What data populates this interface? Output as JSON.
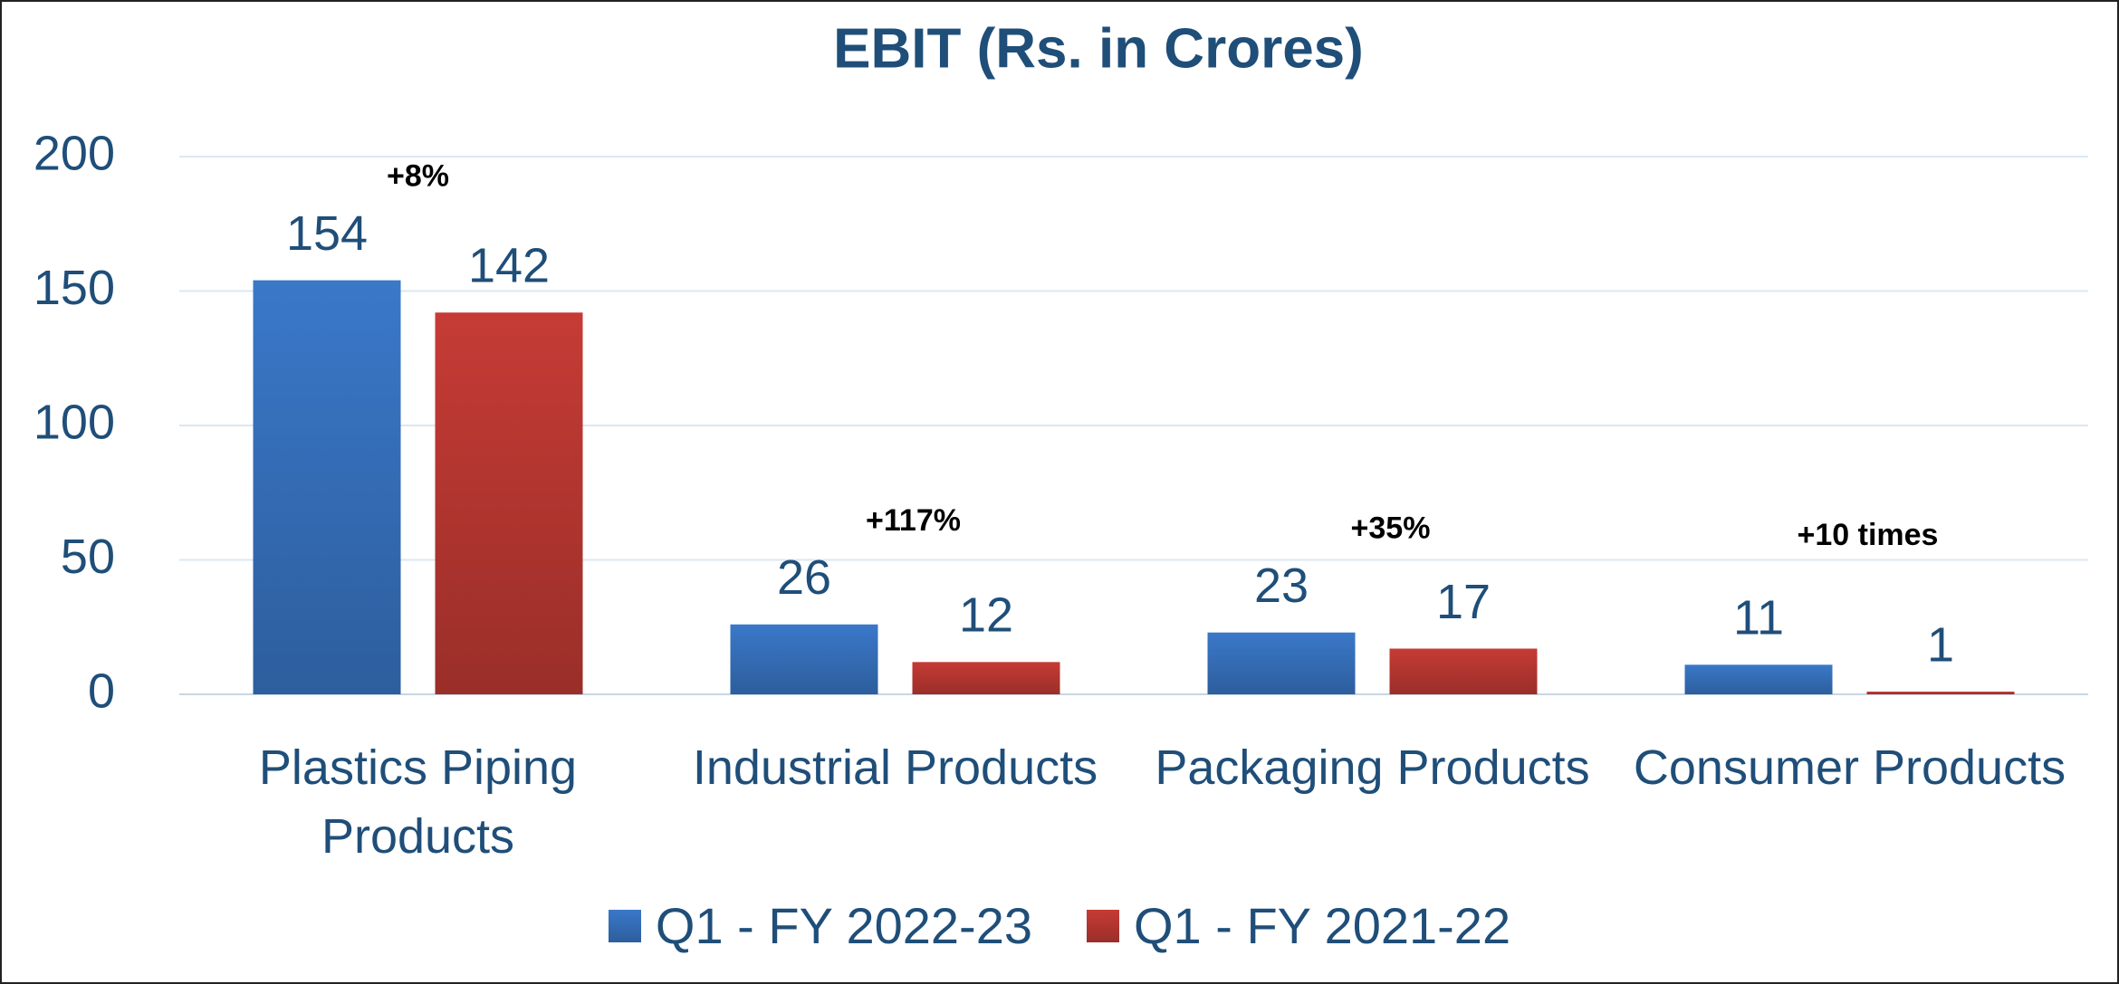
{
  "chart_data": {
    "type": "bar",
    "title": "EBIT (Rs. in Crores)",
    "categories": [
      "Plastics Piping Products",
      "Industrial Products",
      "Packaging Products",
      "Consumer Products"
    ],
    "series": [
      {
        "name": "Q1 - FY 2022-23",
        "color": "#3a78c9",
        "values": [
          154,
          26,
          23,
          11
        ]
      },
      {
        "name": "Q1 - FY 2021-22",
        "color": "#c63b35",
        "values": [
          142,
          12,
          17,
          1
        ]
      }
    ],
    "annotations": [
      "+8%",
      "+117%",
      "+35%",
      "+10 times"
    ],
    "ylim": [
      0,
      200
    ],
    "yticks": [
      0,
      50,
      100,
      150,
      200
    ],
    "grid": true,
    "legend": "bottom"
  }
}
